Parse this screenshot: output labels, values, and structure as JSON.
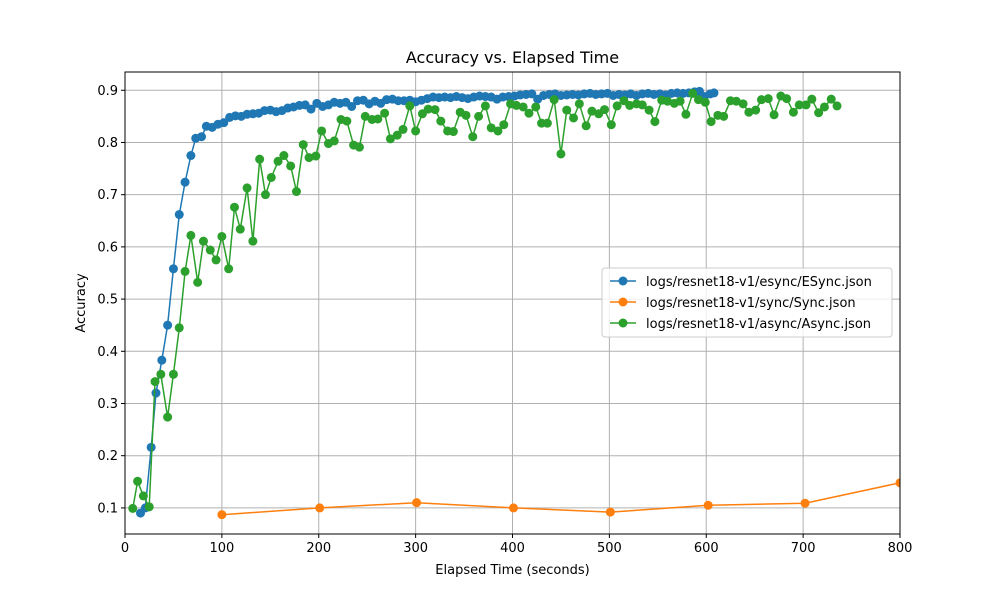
{
  "chart_data": {
    "type": "line",
    "title": "Accuracy vs. Elapsed Time",
    "xlabel": "Elapsed Time (seconds)",
    "ylabel": "Accuracy",
    "xlim": [
      0,
      800
    ],
    "ylim": [
      0.05,
      0.935
    ],
    "xticks": [
      0,
      100,
      200,
      300,
      400,
      500,
      600,
      700,
      800
    ],
    "yticks": [
      0.1,
      0.2,
      0.3,
      0.4,
      0.5,
      0.6,
      0.7,
      0.8,
      0.9
    ],
    "grid": true,
    "legend_position": "center-right",
    "series": [
      {
        "name": "logs/resnet18-v1/esync/ESync.json",
        "color": "#1f77b4",
        "points": [
          [
            16,
            0.09
          ],
          [
            21,
            0.1
          ],
          [
            27,
            0.216
          ],
          [
            32,
            0.32
          ],
          [
            38,
            0.383
          ],
          [
            44,
            0.45
          ],
          [
            50,
            0.558
          ],
          [
            56,
            0.662
          ],
          [
            62,
            0.724
          ],
          [
            68,
            0.775
          ],
          [
            73,
            0.808
          ],
          [
            79,
            0.811
          ],
          [
            84,
            0.831
          ],
          [
            90,
            0.829
          ],
          [
            96,
            0.835
          ],
          [
            102,
            0.838
          ],
          [
            108,
            0.848
          ],
          [
            114,
            0.851
          ],
          [
            120,
            0.85
          ],
          [
            126,
            0.854
          ],
          [
            132,
            0.855
          ],
          [
            138,
            0.856
          ],
          [
            144,
            0.861
          ],
          [
            150,
            0.862
          ],
          [
            156,
            0.859
          ],
          [
            162,
            0.861
          ],
          [
            168,
            0.866
          ],
          [
            174,
            0.868
          ],
          [
            180,
            0.871
          ],
          [
            186,
            0.872
          ],
          [
            192,
            0.864
          ],
          [
            198,
            0.875
          ],
          [
            204,
            0.869
          ],
          [
            210,
            0.872
          ],
          [
            216,
            0.877
          ],
          [
            222,
            0.875
          ],
          [
            228,
            0.877
          ],
          [
            234,
            0.869
          ],
          [
            240,
            0.88
          ],
          [
            246,
            0.881
          ],
          [
            252,
            0.874
          ],
          [
            258,
            0.879
          ],
          [
            264,
            0.875
          ],
          [
            270,
            0.882
          ],
          [
            276,
            0.883
          ],
          [
            282,
            0.88
          ],
          [
            288,
            0.88
          ],
          [
            294,
            0.881
          ],
          [
            300,
            0.878
          ],
          [
            306,
            0.881
          ],
          [
            312,
            0.884
          ],
          [
            318,
            0.887
          ],
          [
            324,
            0.886
          ],
          [
            330,
            0.887
          ],
          [
            336,
            0.886
          ],
          [
            342,
            0.888
          ],
          [
            348,
            0.886
          ],
          [
            354,
            0.884
          ],
          [
            360,
            0.887
          ],
          [
            366,
            0.889
          ],
          [
            372,
            0.888
          ],
          [
            378,
            0.887
          ],
          [
            384,
            0.883
          ],
          [
            390,
            0.887
          ],
          [
            396,
            0.888
          ],
          [
            402,
            0.889
          ],
          [
            408,
            0.891
          ],
          [
            414,
            0.892
          ],
          [
            420,
            0.893
          ],
          [
            426,
            0.883
          ],
          [
            432,
            0.89
          ],
          [
            438,
            0.892
          ],
          [
            444,
            0.893
          ],
          [
            450,
            0.89
          ],
          [
            456,
            0.891
          ],
          [
            462,
            0.892
          ],
          [
            468,
            0.891
          ],
          [
            474,
            0.893
          ],
          [
            480,
            0.894
          ],
          [
            486,
            0.892
          ],
          [
            492,
            0.893
          ],
          [
            498,
            0.894
          ],
          [
            504,
            0.89
          ],
          [
            510,
            0.892
          ],
          [
            516,
            0.891
          ],
          [
            522,
            0.893
          ],
          [
            528,
            0.89
          ],
          [
            534,
            0.893
          ],
          [
            540,
            0.894
          ],
          [
            546,
            0.892
          ],
          [
            552,
            0.893
          ],
          [
            558,
            0.891
          ],
          [
            564,
            0.894
          ],
          [
            570,
            0.895
          ],
          [
            576,
            0.894
          ],
          [
            582,
            0.895
          ],
          [
            588,
            0.897
          ],
          [
            593,
            0.898
          ],
          [
            598,
            0.888
          ],
          [
            604,
            0.893
          ],
          [
            608,
            0.895
          ]
        ]
      },
      {
        "name": "logs/resnet18-v1/sync/Sync.json",
        "color": "#ff7f0e",
        "points": [
          [
            100,
            0.087
          ],
          [
            201,
            0.1
          ],
          [
            301,
            0.11
          ],
          [
            401,
            0.1
          ],
          [
            501,
            0.092
          ],
          [
            602,
            0.105
          ],
          [
            702,
            0.109
          ],
          [
            800,
            0.148
          ]
        ]
      },
      {
        "name": "logs/resnet18-v1/async/Async.json",
        "color": "#2ca02c",
        "points": [
          [
            8,
            0.099
          ],
          [
            13,
            0.151
          ],
          [
            19,
            0.123
          ],
          [
            25,
            0.102
          ],
          [
            31,
            0.342
          ],
          [
            37,
            0.356
          ],
          [
            44,
            0.274
          ],
          [
            50,
            0.356
          ],
          [
            56,
            0.445
          ],
          [
            62,
            0.553
          ],
          [
            68,
            0.622
          ],
          [
            75,
            0.532
          ],
          [
            81,
            0.611
          ],
          [
            88,
            0.594
          ],
          [
            94,
            0.575
          ],
          [
            100,
            0.62
          ],
          [
            107,
            0.558
          ],
          [
            113,
            0.676
          ],
          [
            119,
            0.634
          ],
          [
            126,
            0.713
          ],
          [
            132,
            0.611
          ],
          [
            139,
            0.768
          ],
          [
            145,
            0.7
          ],
          [
            151,
            0.733
          ],
          [
            158,
            0.764
          ],
          [
            164,
            0.775
          ],
          [
            171,
            0.755
          ],
          [
            177,
            0.706
          ],
          [
            184,
            0.796
          ],
          [
            190,
            0.771
          ],
          [
            197,
            0.774
          ],
          [
            203,
            0.822
          ],
          [
            210,
            0.798
          ],
          [
            216,
            0.803
          ],
          [
            223,
            0.844
          ],
          [
            229,
            0.841
          ],
          [
            236,
            0.795
          ],
          [
            242,
            0.791
          ],
          [
            248,
            0.85
          ],
          [
            255,
            0.844
          ],
          [
            261,
            0.845
          ],
          [
            268,
            0.856
          ],
          [
            274,
            0.807
          ],
          [
            281,
            0.814
          ],
          [
            287,
            0.825
          ],
          [
            294,
            0.87
          ],
          [
            300,
            0.822
          ],
          [
            307,
            0.855
          ],
          [
            313,
            0.864
          ],
          [
            320,
            0.863
          ],
          [
            326,
            0.841
          ],
          [
            333,
            0.822
          ],
          [
            339,
            0.821
          ],
          [
            346,
            0.858
          ],
          [
            352,
            0.852
          ],
          [
            359,
            0.811
          ],
          [
            365,
            0.85
          ],
          [
            372,
            0.87
          ],
          [
            378,
            0.828
          ],
          [
            385,
            0.822
          ],
          [
            391,
            0.834
          ],
          [
            398,
            0.874
          ],
          [
            404,
            0.871
          ],
          [
            411,
            0.868
          ],
          [
            417,
            0.856
          ],
          [
            424,
            0.868
          ],
          [
            430,
            0.837
          ],
          [
            436,
            0.837
          ],
          [
            443,
            0.882
          ],
          [
            450,
            0.778
          ],
          [
            456,
            0.862
          ],
          [
            463,
            0.847
          ],
          [
            469,
            0.874
          ],
          [
            476,
            0.832
          ],
          [
            482,
            0.86
          ],
          [
            489,
            0.855
          ],
          [
            495,
            0.863
          ],
          [
            502,
            0.834
          ],
          [
            508,
            0.87
          ],
          [
            515,
            0.88
          ],
          [
            521,
            0.871
          ],
          [
            528,
            0.874
          ],
          [
            534,
            0.872
          ],
          [
            541,
            0.862
          ],
          [
            547,
            0.84
          ],
          [
            554,
            0.881
          ],
          [
            560,
            0.879
          ],
          [
            567,
            0.875
          ],
          [
            573,
            0.879
          ],
          [
            579,
            0.854
          ],
          [
            586,
            0.894
          ],
          [
            592,
            0.882
          ],
          [
            599,
            0.877
          ],
          [
            605,
            0.84
          ],
          [
            612,
            0.852
          ],
          [
            618,
            0.85
          ],
          [
            625,
            0.88
          ],
          [
            631,
            0.879
          ],
          [
            638,
            0.874
          ],
          [
            644,
            0.858
          ],
          [
            651,
            0.862
          ],
          [
            657,
            0.882
          ],
          [
            664,
            0.884
          ],
          [
            670,
            0.853
          ],
          [
            677,
            0.889
          ],
          [
            683,
            0.884
          ],
          [
            690,
            0.858
          ],
          [
            696,
            0.872
          ],
          [
            703,
            0.872
          ],
          [
            709,
            0.883
          ],
          [
            716,
            0.857
          ],
          [
            722,
            0.868
          ],
          [
            729,
            0.883
          ],
          [
            735,
            0.87
          ]
        ]
      }
    ]
  }
}
